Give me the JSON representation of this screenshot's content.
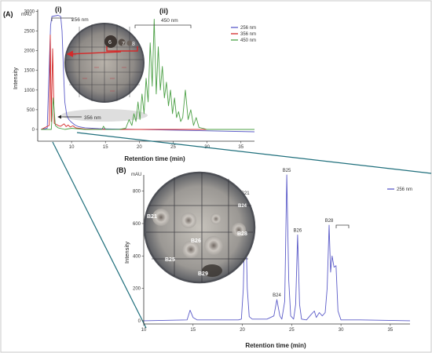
{
  "colors": {
    "s256": "#5b5bc8",
    "s356": "#d42a2a",
    "s450": "#4ca046",
    "connector": "#1f6f7c",
    "border": "#c8c8c8",
    "arrow_red": "#d42a2a"
  },
  "chart_data": [
    {
      "type": "line",
      "panel_label": "(A)",
      "ylabel": "Intensity",
      "xlabel": "Retention time (min)",
      "y_unit": "mAU",
      "xlim": [
        5,
        37
      ],
      "ylim": [
        -300,
        3050
      ],
      "x_ticks": [
        10,
        15,
        20,
        25,
        30,
        35
      ],
      "y_ticks": [
        0,
        500,
        1000,
        1500,
        2000,
        2500,
        3000
      ],
      "legend": {
        "position": "top-right",
        "entries": [
          "256 nm",
          "356 nm",
          "450 nm"
        ]
      },
      "annotations": {
        "region_i": "(i)",
        "region_ii": "(ii)",
        "bracket_256": "256 nm",
        "bracket_450": "450 nm",
        "arrow_356": "356 nm",
        "plate_numbers": [
          "6",
          "7",
          "8"
        ]
      },
      "series": [
        {
          "name": "256 nm",
          "color_key": "s256",
          "x": [
            5.5,
            6.4,
            6.9,
            7.1,
            8.0,
            8.4,
            8.6,
            8.8,
            9.0,
            9.3,
            9.6,
            10.0,
            10.5,
            11.0,
            12.0,
            14.0,
            16.0,
            18.0,
            37.0
          ],
          "y": [
            0,
            30,
            2650,
            2870,
            2900,
            2870,
            2500,
            1500,
            700,
            350,
            250,
            180,
            110,
            70,
            40,
            20,
            10,
            5,
            -60
          ]
        },
        {
          "name": "356 nm",
          "color_key": "s356",
          "x": [
            5.5,
            6.7,
            6.85,
            7.0,
            7.2,
            7.45,
            7.8,
            8.1,
            8.4,
            8.9,
            9.2,
            9.5,
            9.8,
            10.2,
            10.6,
            11.0,
            12.0,
            15.0,
            37.0
          ],
          "y": [
            0,
            100,
            2400,
            200,
            2050,
            150,
            120,
            90,
            80,
            140,
            70,
            110,
            60,
            90,
            40,
            30,
            10,
            0,
            0
          ]
        },
        {
          "name": "450 nm",
          "color_key": "s450",
          "x": [
            5.5,
            7.0,
            7.3,
            7.6,
            8.0,
            9.0,
            10.0,
            12.0,
            14.5,
            14.7,
            15.0,
            17.0,
            18.0,
            18.5,
            18.9,
            19.2,
            19.5,
            19.8,
            20.1,
            20.4,
            20.7,
            21.0,
            21.3,
            21.6,
            21.9,
            22.2,
            22.5,
            22.8,
            23.1,
            23.4,
            23.7,
            24.0,
            24.3,
            24.6,
            24.9,
            25.2,
            25.5,
            25.8,
            26.1,
            26.4,
            26.8,
            27.2,
            27.6,
            28.0,
            28.4,
            28.8,
            30.0,
            32.0,
            37.0
          ],
          "y": [
            0,
            0,
            800,
            100,
            40,
            0,
            30,
            0,
            0,
            80,
            0,
            0,
            30,
            250,
            100,
            400,
            200,
            700,
            250,
            900,
            400,
            1300,
            700,
            2200,
            1100,
            2800,
            900,
            2100,
            1000,
            1600,
            800,
            1200,
            600,
            1000,
            400,
            800,
            300,
            450,
            200,
            300,
            1000,
            250,
            500,
            100,
            300,
            50,
            0,
            0,
            0
          ]
        }
      ]
    },
    {
      "type": "line",
      "panel_label": "(B)",
      "ylabel": "Intensity",
      "xlabel": "Retention time (min)",
      "y_unit": "mAU",
      "xlim": [
        10,
        37
      ],
      "ylim": [
        -20,
        900
      ],
      "x_ticks": [
        10,
        15,
        20,
        25,
        30,
        35
      ],
      "y_ticks": [
        0,
        200,
        400,
        600,
        800
      ],
      "legend": {
        "position": "top-right",
        "entries": [
          "256 nm"
        ]
      },
      "peak_labels": [
        {
          "text": "B21",
          "x": 20.3,
          "y": 760
        },
        {
          "text": "B24",
          "x": 23.5,
          "y": 130
        },
        {
          "text": "B25",
          "x": 24.5,
          "y": 900
        },
        {
          "text": "B26",
          "x": 25.6,
          "y": 530
        },
        {
          "text": "B28",
          "x": 28.8,
          "y": 590
        }
      ],
      "plate_labels": [
        "B21",
        "B25",
        "B26",
        "B28",
        "B29",
        "B24"
      ],
      "series": [
        {
          "name": "256 nm",
          "color_key": "s256",
          "x": [
            10.0,
            14.4,
            14.7,
            15.0,
            15.4,
            19.6,
            19.9,
            20.1,
            20.3,
            20.5,
            20.7,
            21.0,
            22.5,
            23.2,
            23.5,
            23.8,
            24.0,
            24.3,
            24.5,
            24.7,
            24.9,
            25.2,
            25.4,
            25.6,
            25.8,
            26.0,
            26.5,
            27.0,
            27.3,
            27.5,
            27.8,
            28.1,
            28.4,
            28.6,
            28.8,
            28.95,
            29.1,
            29.3,
            29.5,
            29.7,
            30.0,
            32.0,
            37.0
          ],
          "y": [
            0,
            5,
            65,
            20,
            5,
            5,
            10,
            200,
            760,
            200,
            25,
            10,
            10,
            30,
            130,
            30,
            10,
            120,
            900,
            250,
            30,
            10,
            100,
            530,
            100,
            10,
            5,
            40,
            60,
            20,
            50,
            30,
            50,
            200,
            590,
            300,
            400,
            330,
            340,
            60,
            5,
            5,
            0
          ]
        }
      ]
    }
  ]
}
